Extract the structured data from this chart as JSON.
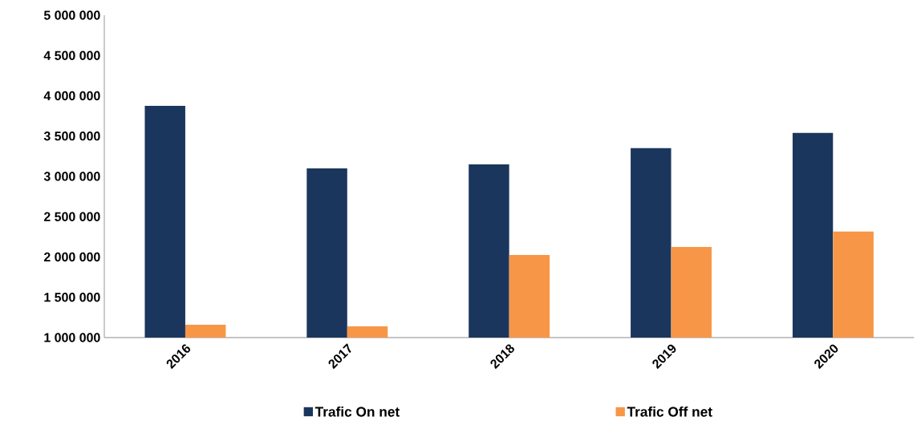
{
  "chart_data": {
    "type": "bar",
    "categories": [
      "2016",
      "2017",
      "2018",
      "2019",
      "2020"
    ],
    "series": [
      {
        "name": "Trafic On net",
        "color": "#1b365d",
        "values": [
          3875000,
          3100000,
          3150000,
          3350000,
          3540000
        ]
      },
      {
        "name": "Trafic Off net",
        "color": "#f79646",
        "values": [
          1160000,
          1140000,
          2025000,
          2125000,
          2315000
        ]
      }
    ],
    "ylim": [
      1000000,
      5000000
    ],
    "yticks": [
      {
        "value": 1000000,
        "label": "1 000 000"
      },
      {
        "value": 1500000,
        "label": "1 500 000"
      },
      {
        "value": 2000000,
        "label": "2 000 000"
      },
      {
        "value": 2500000,
        "label": "2 500 000"
      },
      {
        "value": 3000000,
        "label": "3 000 000"
      },
      {
        "value": 3500000,
        "label": "3 500 000"
      },
      {
        "value": 4000000,
        "label": "4 000 000"
      },
      {
        "value": 4500000,
        "label": "4 500 000"
      },
      {
        "value": 5000000,
        "label": "5 000 000"
      }
    ],
    "legend": "bottom"
  }
}
